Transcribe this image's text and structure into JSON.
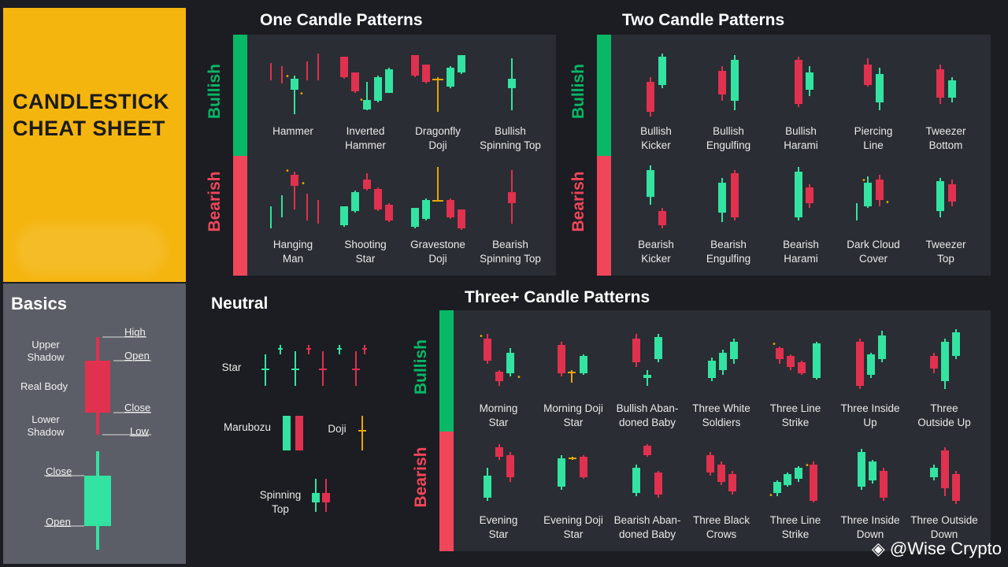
{
  "colors": {
    "bull": "#33e3a1",
    "bear": "#e0314f",
    "doji": "#e5a50a",
    "bullbar": "#08b866",
    "bearbar": "#f0465a"
  },
  "title": {
    "line1": "CANDLESTICK",
    "line2": "CHEAT SHEET"
  },
  "basics": {
    "heading": "Basics",
    "high": "High",
    "open": "Open",
    "close": "Close",
    "low": "Low",
    "upper_shadow_1": "Upper",
    "upper_shadow_2": "Shadow",
    "real_body": "Real Body",
    "lower_shadow_1": "Lower",
    "lower_shadow_2": "Shadow",
    "close2": "Close",
    "open2": "Open"
  },
  "sections": {
    "one": "One Candle Patterns",
    "two": "Two Candle Patterns",
    "three": "Three+ Candle Patterns",
    "neutral": "Neutral",
    "bullish": "Bullish",
    "bearish": "Bearish"
  },
  "one_bull": [
    [
      "Hammer",
      ""
    ],
    [
      "Inverted",
      "Hammer"
    ],
    [
      "Dragonfly",
      "Doji"
    ],
    [
      "Bullish",
      "Spinning Top"
    ]
  ],
  "one_bear": [
    [
      "Hanging",
      "Man"
    ],
    [
      "Shooting",
      "Star"
    ],
    [
      "Gravestone",
      "Doji"
    ],
    [
      "Bearish",
      "Spinning Top"
    ]
  ],
  "two_bull": [
    [
      "Bullish",
      "Kicker"
    ],
    [
      "Bullish",
      "Engulfing"
    ],
    [
      "Bullish",
      "Harami"
    ],
    [
      "Piercing",
      "Line"
    ],
    [
      "Tweezer",
      "Bottom"
    ]
  ],
  "two_bear": [
    [
      "Bearish",
      "Kicker"
    ],
    [
      "Bearish",
      "Engulfing"
    ],
    [
      "Bearish",
      "Harami"
    ],
    [
      "Dark Cloud",
      "Cover"
    ],
    [
      "Tweezer",
      "Top"
    ]
  ],
  "three_bull": [
    [
      "Morning",
      "Star"
    ],
    [
      "Morning Doji",
      "Star"
    ],
    [
      "Bullish Aban-",
      "doned Baby"
    ],
    [
      "Three White",
      "Soldiers"
    ],
    [
      "Three Line",
      "Strike"
    ],
    [
      "Three Inside",
      "Up"
    ],
    [
      "Three",
      "Outside Up"
    ]
  ],
  "three_bear": [
    [
      "Evening",
      "Star"
    ],
    [
      "Evening Doji",
      "Star"
    ],
    [
      "Bearish Aban-",
      "doned Baby"
    ],
    [
      "Three Black",
      "Crows"
    ],
    [
      "Three Line",
      "Strike"
    ],
    [
      "Three Inside",
      "Down"
    ],
    [
      "Three Outside",
      "Down"
    ]
  ],
  "neutral": {
    "star": "Star",
    "marubozu": "Marubozu",
    "doji": "Doji",
    "spinning_1": "Spinning",
    "spinning_2": "Top"
  },
  "watermark": "@Wise Crypto",
  "icons": {
    "logo": "binance-diamond-icon"
  }
}
